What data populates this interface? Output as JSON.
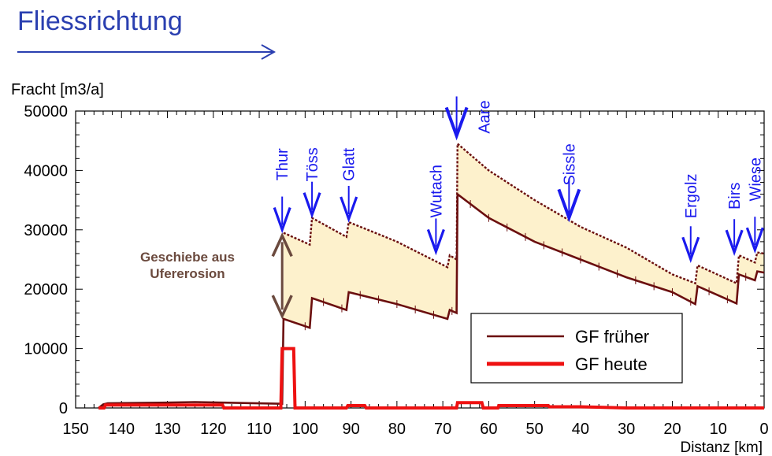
{
  "header": {
    "title": "Fliessrichtung",
    "arrow_icon": "right-arrow-icon"
  },
  "colors": {
    "early": "#6b0f0f",
    "today": "#ee1111",
    "fill": "#fdf1cc",
    "river": "#1a1aee",
    "erosion": "#6b4a3e",
    "title": "#2a3fb0"
  },
  "chart_data": {
    "type": "line",
    "ylabel": "Fracht [m3/a]",
    "xlabel": "Distanz [km]",
    "xlim": [
      150,
      0
    ],
    "ylim": [
      0,
      50000
    ],
    "x_ticks": [
      150,
      140,
      130,
      120,
      110,
      100,
      90,
      80,
      70,
      60,
      50,
      40,
      30,
      20,
      10,
      0
    ],
    "y_ticks": [
      0,
      10000,
      20000,
      30000,
      40000,
      50000
    ],
    "series": [
      {
        "name": "GF früher",
        "points": [
          [
            145,
            0
          ],
          [
            144,
            600
          ],
          [
            143,
            800
          ],
          [
            130,
            900
          ],
          [
            124,
            1000
          ],
          [
            118,
            900
          ],
          [
            105,
            700
          ],
          [
            104.7,
            15000
          ],
          [
            99,
            13500
          ],
          [
            98.5,
            18500
          ],
          [
            91,
            16500
          ],
          [
            90.5,
            19500
          ],
          [
            80,
            17500
          ],
          [
            69,
            15000
          ],
          [
            68.5,
            16500
          ],
          [
            67,
            16000
          ],
          [
            66.8,
            36000
          ],
          [
            60,
            32000
          ],
          [
            50,
            28000
          ],
          [
            40,
            25000
          ],
          [
            30,
            22000
          ],
          [
            20,
            19500
          ],
          [
            15,
            17500
          ],
          [
            14.5,
            20500
          ],
          [
            6,
            17600
          ],
          [
            5.5,
            22500
          ],
          [
            2,
            21500
          ],
          [
            1.5,
            23000
          ],
          [
            0,
            22800
          ]
        ]
      },
      {
        "name": "GF heute",
        "points": [
          [
            145,
            0
          ],
          [
            143.8,
            0
          ],
          [
            143.5,
            500
          ],
          [
            118,
            500
          ],
          [
            117.7,
            0
          ],
          [
            105.3,
            0
          ],
          [
            105,
            10000
          ],
          [
            102.5,
            10000
          ],
          [
            102.2,
            0
          ],
          [
            91,
            0
          ],
          [
            90.7,
            400
          ],
          [
            87,
            400
          ],
          [
            86.7,
            0
          ],
          [
            67,
            0
          ],
          [
            66.8,
            900
          ],
          [
            61.5,
            900
          ],
          [
            61.2,
            0
          ],
          [
            58,
            0
          ],
          [
            57.8,
            400
          ],
          [
            47,
            400
          ],
          [
            46.8,
            200
          ],
          [
            40,
            200
          ],
          [
            30,
            0
          ],
          [
            0,
            0
          ]
        ]
      },
      {
        "name": "",
        "points": [
          [
            104.7,
            29500
          ],
          [
            99,
            27500
          ],
          [
            98.5,
            32000
          ],
          [
            91,
            28800
          ],
          [
            90.5,
            31300
          ],
          [
            80,
            28000
          ],
          [
            69,
            23700
          ],
          [
            68.5,
            25700
          ],
          [
            67,
            25000
          ],
          [
            66.8,
            44500
          ],
          [
            60,
            40000
          ],
          [
            50,
            35000
          ],
          [
            40,
            30500
          ],
          [
            30,
            27000
          ],
          [
            20,
            22500
          ],
          [
            15,
            21000
          ],
          [
            14.5,
            24000
          ],
          [
            6,
            21000
          ],
          [
            5.5,
            25700
          ],
          [
            2,
            24500
          ],
          [
            1.5,
            26200
          ],
          [
            0,
            26000
          ]
        ]
      }
    ],
    "tributaries": [
      {
        "name": "Thur",
        "km": 105,
        "arrow_y": 29500,
        "label_y": 41000
      },
      {
        "name": "Töss",
        "km": 98.5,
        "arrow_y": 32000,
        "label_y": 41000
      },
      {
        "name": "Glatt",
        "km": 90.5,
        "arrow_y": 31300,
        "label_y": 41000
      },
      {
        "name": "Wutach",
        "km": 71.5,
        "arrow_y": 25800,
        "label_y": 36500
      },
      {
        "name": "Aare",
        "km": 67,
        "arrow_y": 45300,
        "label_y": 49000
      },
      {
        "name": "Sissle",
        "km": 42.5,
        "arrow_y": 31500,
        "label_y": 41000
      },
      {
        "name": "Ergolz",
        "km": 16,
        "arrow_y": 24500,
        "label_y": 35700
      },
      {
        "name": "Birs",
        "km": 6.5,
        "arrow_y": 25700,
        "label_y": 35700
      },
      {
        "name": "Wiese",
        "km": 2,
        "arrow_y": 26100,
        "label_y": 38500
      }
    ],
    "annotation": {
      "lines": [
        "Geschiebe aus",
        "Ufererosion"
      ],
      "km": 105,
      "y_low": 15500,
      "y_high": 29000,
      "text_km": 120,
      "text_y": 24000
    },
    "legend": {
      "placement": "bottom-right"
    }
  }
}
